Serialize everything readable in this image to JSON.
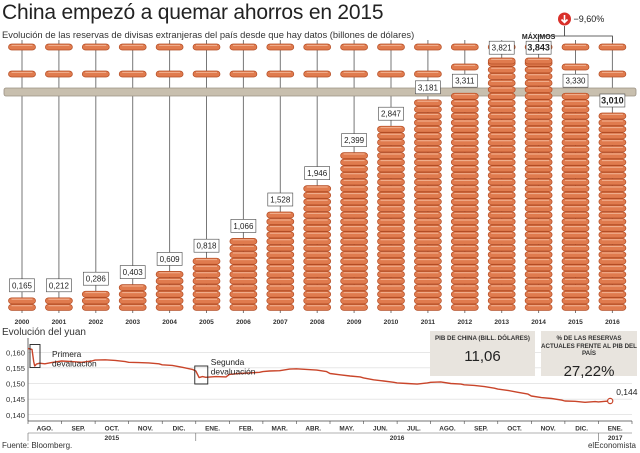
{
  "title": "China empezó a quemar ahorros en 2015",
  "subtitle": "Evolución de las reservas de divisas extranjeras del país desde que hay datos (billones de dólares)",
  "max_label": "MÁXIMOS",
  "drop_label": "−9,60%",
  "colors": {
    "bead": "#e07b4e",
    "bead_edge": "#b34c24",
    "rod": "#777777",
    "bar": "#c8bfae",
    "line": "#c9452a",
    "box": "#e8e4de",
    "arrow": "#d9302a"
  },
  "chart_data": [
    {
      "type": "bar",
      "categories": [
        "2000",
        "2001",
        "2002",
        "2003",
        "2004",
        "2005",
        "2006",
        "2007",
        "2008",
        "2009",
        "2010",
        "2011",
        "2012",
        "2013",
        "2014",
        "2015",
        "2016"
      ],
      "values": [
        0.165,
        0.212,
        0.286,
        0.403,
        0.609,
        0.818,
        1.066,
        1.528,
        1.946,
        2.399,
        2.847,
        3.181,
        3.311,
        3.821,
        3.843,
        3.33,
        3.01
      ],
      "value_labels": [
        "0,165",
        "0,212",
        "0,286",
        "0,403",
        "0,609",
        "0,818",
        "1,066",
        "1,528",
        "1,946",
        "2,399",
        "2,847",
        "3,181",
        "3,311",
        "3,821",
        "3,843",
        "3,330",
        "3,010"
      ],
      "annotations": [
        "MÁXIMOS",
        "−9,60%"
      ]
    },
    {
      "type": "line",
      "title": "Evolución del yuan",
      "ylim": [
        0.138,
        0.162
      ],
      "yticks": [
        0.14,
        0.145,
        0.15,
        0.155,
        0.16
      ],
      "ytick_labels": [
        "0,140",
        "0,145",
        "0,150",
        "0,155",
        "0,160"
      ],
      "months": [
        "AGO.",
        "SEP.",
        "OCT.",
        "NOV.",
        "DIC.",
        "ENE.",
        "FEB.",
        "MAR.",
        "ABR.",
        "MAY.",
        "JUN.",
        "JUL.",
        "AGO.",
        "SEP.",
        "OCT.",
        "NOV.",
        "DIC.",
        "ENE."
      ],
      "years": [
        {
          "label": "2015",
          "first_month": 0,
          "last_month": 4
        },
        {
          "label": "2016",
          "first_month": 5,
          "last_month": 16
        },
        {
          "label": "2017",
          "first_month": 17,
          "last_month": 17
        }
      ],
      "series": [
        {
          "values": [
            [
              0.0,
              0.1612
            ],
            [
              0.05,
              0.1611
            ],
            [
              0.12,
              0.1609
            ],
            [
              0.17,
              0.157
            ],
            [
              0.2,
              0.1556
            ],
            [
              0.25,
              0.1562
            ],
            [
              0.35,
              0.1565
            ],
            [
              0.5,
              0.1563
            ],
            [
              0.7,
              0.1567
            ],
            [
              1.0,
              0.1572
            ],
            [
              1.3,
              0.157
            ],
            [
              1.6,
              0.1568
            ],
            [
              1.9,
              0.1572
            ],
            [
              2.0,
              0.1575
            ],
            [
              2.3,
              0.1576
            ],
            [
              2.6,
              0.1574
            ],
            [
              2.9,
              0.157
            ],
            [
              3.0,
              0.1568
            ],
            [
              3.3,
              0.1567
            ],
            [
              3.6,
              0.1566
            ],
            [
              3.9,
              0.1563
            ],
            [
              4.0,
              0.156
            ],
            [
              4.3,
              0.1558
            ],
            [
              4.6,
              0.1552
            ],
            [
              4.9,
              0.1545
            ],
            [
              5.0,
              0.154
            ],
            [
              5.1,
              0.1519
            ],
            [
              5.2,
              0.1522
            ],
            [
              5.3,
              0.152
            ],
            [
              5.6,
              0.1522
            ],
            [
              5.9,
              0.1521
            ],
            [
              6.0,
              0.1529
            ],
            [
              6.3,
              0.1532
            ],
            [
              6.6,
              0.1534
            ],
            [
              6.9,
              0.1536
            ],
            [
              7.0,
              0.1538
            ],
            [
              7.2,
              0.154
            ],
            [
              7.5,
              0.1541
            ],
            [
              7.8,
              0.1546
            ],
            [
              8.0,
              0.1547
            ],
            [
              8.3,
              0.1545
            ],
            [
              8.6,
              0.1543
            ],
            [
              8.9,
              0.1538
            ],
            [
              9.0,
              0.1532
            ],
            [
              9.3,
              0.1528
            ],
            [
              9.6,
              0.1524
            ],
            [
              9.9,
              0.1521
            ],
            [
              10.0,
              0.1518
            ],
            [
              10.3,
              0.1512
            ],
            [
              10.6,
              0.1508
            ],
            [
              10.9,
              0.1504
            ],
            [
              11.0,
              0.1502
            ],
            [
              11.3,
              0.15
            ],
            [
              11.6,
              0.1498
            ],
            [
              11.9,
              0.1502
            ],
            [
              12.0,
              0.1504
            ],
            [
              12.3,
              0.1505
            ],
            [
              12.6,
              0.15
            ],
            [
              12.9,
              0.1498
            ],
            [
              13.0,
              0.1496
            ],
            [
              13.3,
              0.1494
            ],
            [
              13.6,
              0.149
            ],
            [
              13.9,
              0.1485
            ],
            [
              14.0,
              0.1482
            ],
            [
              14.3,
              0.1478
            ],
            [
              14.6,
              0.1472
            ],
            [
              14.9,
              0.1466
            ],
            [
              15.0,
              0.146
            ],
            [
              15.3,
              0.1455
            ],
            [
              15.6,
              0.1452
            ],
            [
              15.9,
              0.1447
            ],
            [
              16.0,
              0.1444
            ],
            [
              16.3,
              0.1443
            ],
            [
              16.6,
              0.144
            ],
            [
              16.9,
              0.1442
            ],
            [
              17.0,
              0.1441
            ],
            [
              17.2,
              0.1443
            ],
            [
              17.35,
              0.1444
            ]
          ]
        }
      ],
      "annotations": [
        "Primera devaluación",
        "Segunda devaluación",
        "0,144"
      ]
    }
  ],
  "yuan_title": "Evolución del yuan",
  "first_devaluation": "Primera devaluación",
  "second_devaluation": "Segunda devaluación",
  "last_value": "0,144",
  "gdp_box": {
    "label": "PIB DE CHINA (BILL. DÓLARES)",
    "value": "11,06"
  },
  "pct_box": {
    "label": "% DE LAS RESERVAS ACTUALES FRENTE AL PIB DEL PAÍS",
    "value": "27,22%"
  },
  "source": "Fuente: Bloomberg.",
  "brand": "elEconomista"
}
